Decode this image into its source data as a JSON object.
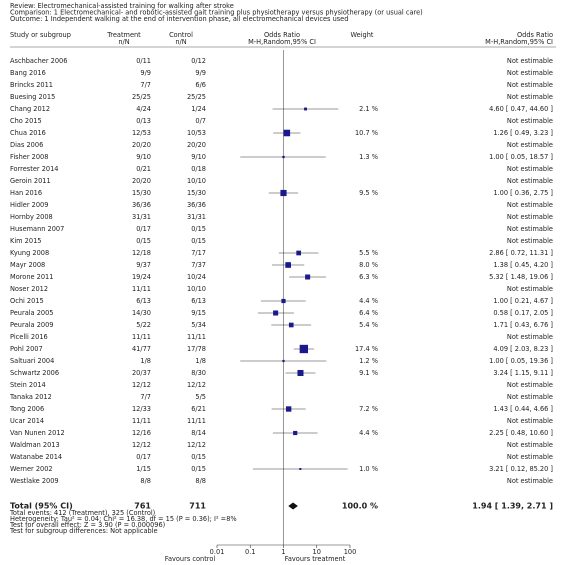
{
  "chart_data": {
    "type": "forest",
    "review": "Review:   Electromechanical-assisted training for walking after stroke",
    "comparison": "Comparison:   1 Electromechanical- and robotic-assisted gait training plus physiotherapy versus physiotherapy (or usual care)",
    "outcome": "Outcome:   1 Independent walking at the end of intervention phase, all electromechanical devices used",
    "columns": {
      "study": "Study or subgroup",
      "treatment": "Treatment",
      "treatment_sub": "n/N",
      "control": "Control",
      "control_sub": "n/N",
      "plot": "Odds Ratio",
      "plot_sub": "M-H,Random,95% CI",
      "weight": "Weight",
      "effect": "Odds Ratio",
      "effect_sub": "M-H,Random,95% CI"
    },
    "studies": [
      {
        "study": "Aschbacher 2006",
        "treatment": "0/11",
        "control": "0/12",
        "or_label": "Not estimable"
      },
      {
        "study": "Bang 2016",
        "treatment": "9/9",
        "control": "9/9",
        "or_label": "Not estimable"
      },
      {
        "study": "Brincks 2011",
        "treatment": "7/7",
        "control": "6/6",
        "or_label": "Not estimable"
      },
      {
        "study": "Buesing 2015",
        "treatment": "25/25",
        "control": "25/25",
        "or_label": "Not estimable"
      },
      {
        "study": "Chang 2012",
        "treatment": "4/24",
        "control": "1/24",
        "weight": 2.1,
        "weight_label": "2.1 %",
        "or": 4.6,
        "ci": [
          0.47,
          44.6
        ],
        "or_label": "4.60 [ 0.47, 44.60 ]"
      },
      {
        "study": "Cho 2015",
        "treatment": "0/13",
        "control": "0/7",
        "or_label": "Not estimable"
      },
      {
        "study": "Chua 2016",
        "treatment": "12/53",
        "control": "10/53",
        "weight": 10.7,
        "weight_label": "10.7 %",
        "or": 1.26,
        "ci": [
          0.49,
          3.23
        ],
        "or_label": "1.26 [ 0.49, 3.23 ]"
      },
      {
        "study": "Dias 2006",
        "treatment": "20/20",
        "control": "20/20",
        "or_label": "Not estimable"
      },
      {
        "study": "Fisher 2008",
        "treatment": "9/10",
        "control": "9/10",
        "weight": 1.3,
        "weight_label": "1.3 %",
        "or": 1.0,
        "ci": [
          0.05,
          18.57
        ],
        "or_label": "1.00 [ 0.05, 18.57 ]"
      },
      {
        "study": "Forrester 2014",
        "treatment": "0/21",
        "control": "0/18",
        "or_label": "Not estimable"
      },
      {
        "study": "Geroin 2011",
        "treatment": "20/20",
        "control": "10/10",
        "or_label": "Not estimable"
      },
      {
        "study": "Han 2016",
        "treatment": "15/30",
        "control": "15/30",
        "weight": 9.5,
        "weight_label": "9.5 %",
        "or": 1.0,
        "ci": [
          0.36,
          2.75
        ],
        "or_label": "1.00 [ 0.36, 2.75 ]"
      },
      {
        "study": "Hidler 2009",
        "treatment": "36/36",
        "control": "36/36",
        "or_label": "Not estimable"
      },
      {
        "study": "Hornby 2008",
        "treatment": "31/31",
        "control": "31/31",
        "or_label": "Not estimable"
      },
      {
        "study": "Husemann 2007",
        "treatment": "0/17",
        "control": "0/15",
        "or_label": "Not estimable"
      },
      {
        "study": "Kim 2015",
        "treatment": "0/15",
        "control": "0/15",
        "or_label": "Not estimable"
      },
      {
        "study": "Kyung 2008",
        "treatment": "12/18",
        "control": "7/17",
        "weight": 5.5,
        "weight_label": "5.5 %",
        "or": 2.86,
        "ci": [
          0.72,
          11.31
        ],
        "or_label": "2.86 [ 0.72, 11.31 ]"
      },
      {
        "study": "Mayr 2008",
        "treatment": "9/37",
        "control": "7/37",
        "weight": 8.0,
        "weight_label": "8.0 %",
        "or": 1.38,
        "ci": [
          0.45,
          4.2
        ],
        "or_label": "1.38 [ 0.45, 4.20 ]"
      },
      {
        "study": "Morone 2011",
        "treatment": "19/24",
        "control": "10/24",
        "weight": 6.3,
        "weight_label": "6.3 %",
        "or": 5.32,
        "ci": [
          1.48,
          19.06
        ],
        "or_label": "5.32 [ 1.48, 19.06 ]"
      },
      {
        "study": "Noser 2012",
        "treatment": "11/11",
        "control": "10/10",
        "or_label": "Not estimable"
      },
      {
        "study": "Ochi 2015",
        "treatment": "6/13",
        "control": "6/13",
        "weight": 4.4,
        "weight_label": "4.4 %",
        "or": 1.0,
        "ci": [
          0.21,
          4.67
        ],
        "or_label": "1.00 [ 0.21, 4.67 ]"
      },
      {
        "study": "Peurala 2005",
        "treatment": "14/30",
        "control": "9/15",
        "weight": 6.4,
        "weight_label": "6.4 %",
        "or": 0.58,
        "ci": [
          0.17,
          2.05
        ],
        "or_label": "0.58 [ 0.17, 2.05 ]"
      },
      {
        "study": "Peurala 2009",
        "treatment": "5/22",
        "control": "5/34",
        "weight": 5.4,
        "weight_label": "5.4 %",
        "or": 1.71,
        "ci": [
          0.43,
          6.76
        ],
        "or_label": "1.71 [ 0.43, 6.76 ]"
      },
      {
        "study": "Picelli 2016",
        "treatment": "11/11",
        "control": "11/11",
        "or_label": "Not estimable"
      },
      {
        "study": "Pohl 2007",
        "treatment": "41/77",
        "control": "17/78",
        "weight": 17.4,
        "weight_label": "17.4 %",
        "or": 4.09,
        "ci": [
          2.03,
          8.23
        ],
        "or_label": "4.09 [ 2.03, 8.23 ]"
      },
      {
        "study": "Saltuari 2004",
        "treatment": "1/8",
        "control": "1/8",
        "weight": 1.2,
        "weight_label": "1.2 %",
        "or": 1.0,
        "ci": [
          0.05,
          19.36
        ],
        "or_label": "1.00 [ 0.05, 19.36 ]"
      },
      {
        "study": "Schwartz 2006",
        "treatment": "20/37",
        "control": "8/30",
        "weight": 9.1,
        "weight_label": "9.1 %",
        "or": 3.24,
        "ci": [
          1.15,
          9.11
        ],
        "or_label": "3.24 [ 1.15, 9.11 ]"
      },
      {
        "study": "Stein 2014",
        "treatment": "12/12",
        "control": "12/12",
        "or_label": "Not estimable"
      },
      {
        "study": "Tanaka 2012",
        "treatment": "7/7",
        "control": "5/5",
        "or_label": "Not estimable"
      },
      {
        "study": "Tong 2006",
        "treatment": "12/33",
        "control": "6/21",
        "weight": 7.2,
        "weight_label": "7.2 %",
        "or": 1.43,
        "ci": [
          0.44,
          4.66
        ],
        "or_label": "1.43 [ 0.44, 4.66 ]"
      },
      {
        "study": "Ucar 2014",
        "treatment": "11/11",
        "control": "11/11",
        "or_label": "Not estimable"
      },
      {
        "study": "Van Nunen 2012",
        "treatment": "12/16",
        "control": "8/14",
        "weight": 4.4,
        "weight_label": "4.4 %",
        "or": 2.25,
        "ci": [
          0.48,
          10.6
        ],
        "or_label": "2.25 [ 0.48, 10.60 ]"
      },
      {
        "study": "Waldman 2013",
        "treatment": "12/12",
        "control": "12/12",
        "or_label": "Not estimable"
      },
      {
        "study": "Watanabe 2014",
        "treatment": "0/17",
        "control": "0/15",
        "or_label": "Not estimable"
      },
      {
        "study": "Werner 2002",
        "treatment": "1/15",
        "control": "0/15",
        "weight": 1.0,
        "weight_label": "1.0 %",
        "or": 3.21,
        "ci": [
          0.12,
          85.2
        ],
        "or_label": "3.21 [ 0.12, 85.20 ]"
      },
      {
        "study": "Westlake 2009",
        "treatment": "8/8",
        "control": "8/8",
        "or_label": "Not estimable"
      }
    ],
    "total": {
      "study": "Total (95% CI)",
      "treatment": "761",
      "control": "711",
      "weight": 100.0,
      "weight_label": "100.0 %",
      "or": 1.94,
      "ci": [
        1.39,
        2.71
      ],
      "or_label": "1.94 [ 1.39, 2.71 ]"
    },
    "notes": [
      "Total events: 412 (Treatment), 325 (Control)",
      "Heterogeneity: Tau² = 0.04; Chi² = 16.38, df = 15 (P = 0.36); I² =8%",
      "Test for overall effect: Z = 3.90 (P = 0.000096)",
      "Test for subgroup differences: Not applicable"
    ],
    "log_x": true,
    "xlim": [
      0.01,
      100
    ],
    "xticks": [
      0.01,
      0.1,
      1,
      10,
      100
    ],
    "favours_left": "Favours control",
    "favours_right": "Favours treatment",
    "color": "#1a1a8c"
  }
}
